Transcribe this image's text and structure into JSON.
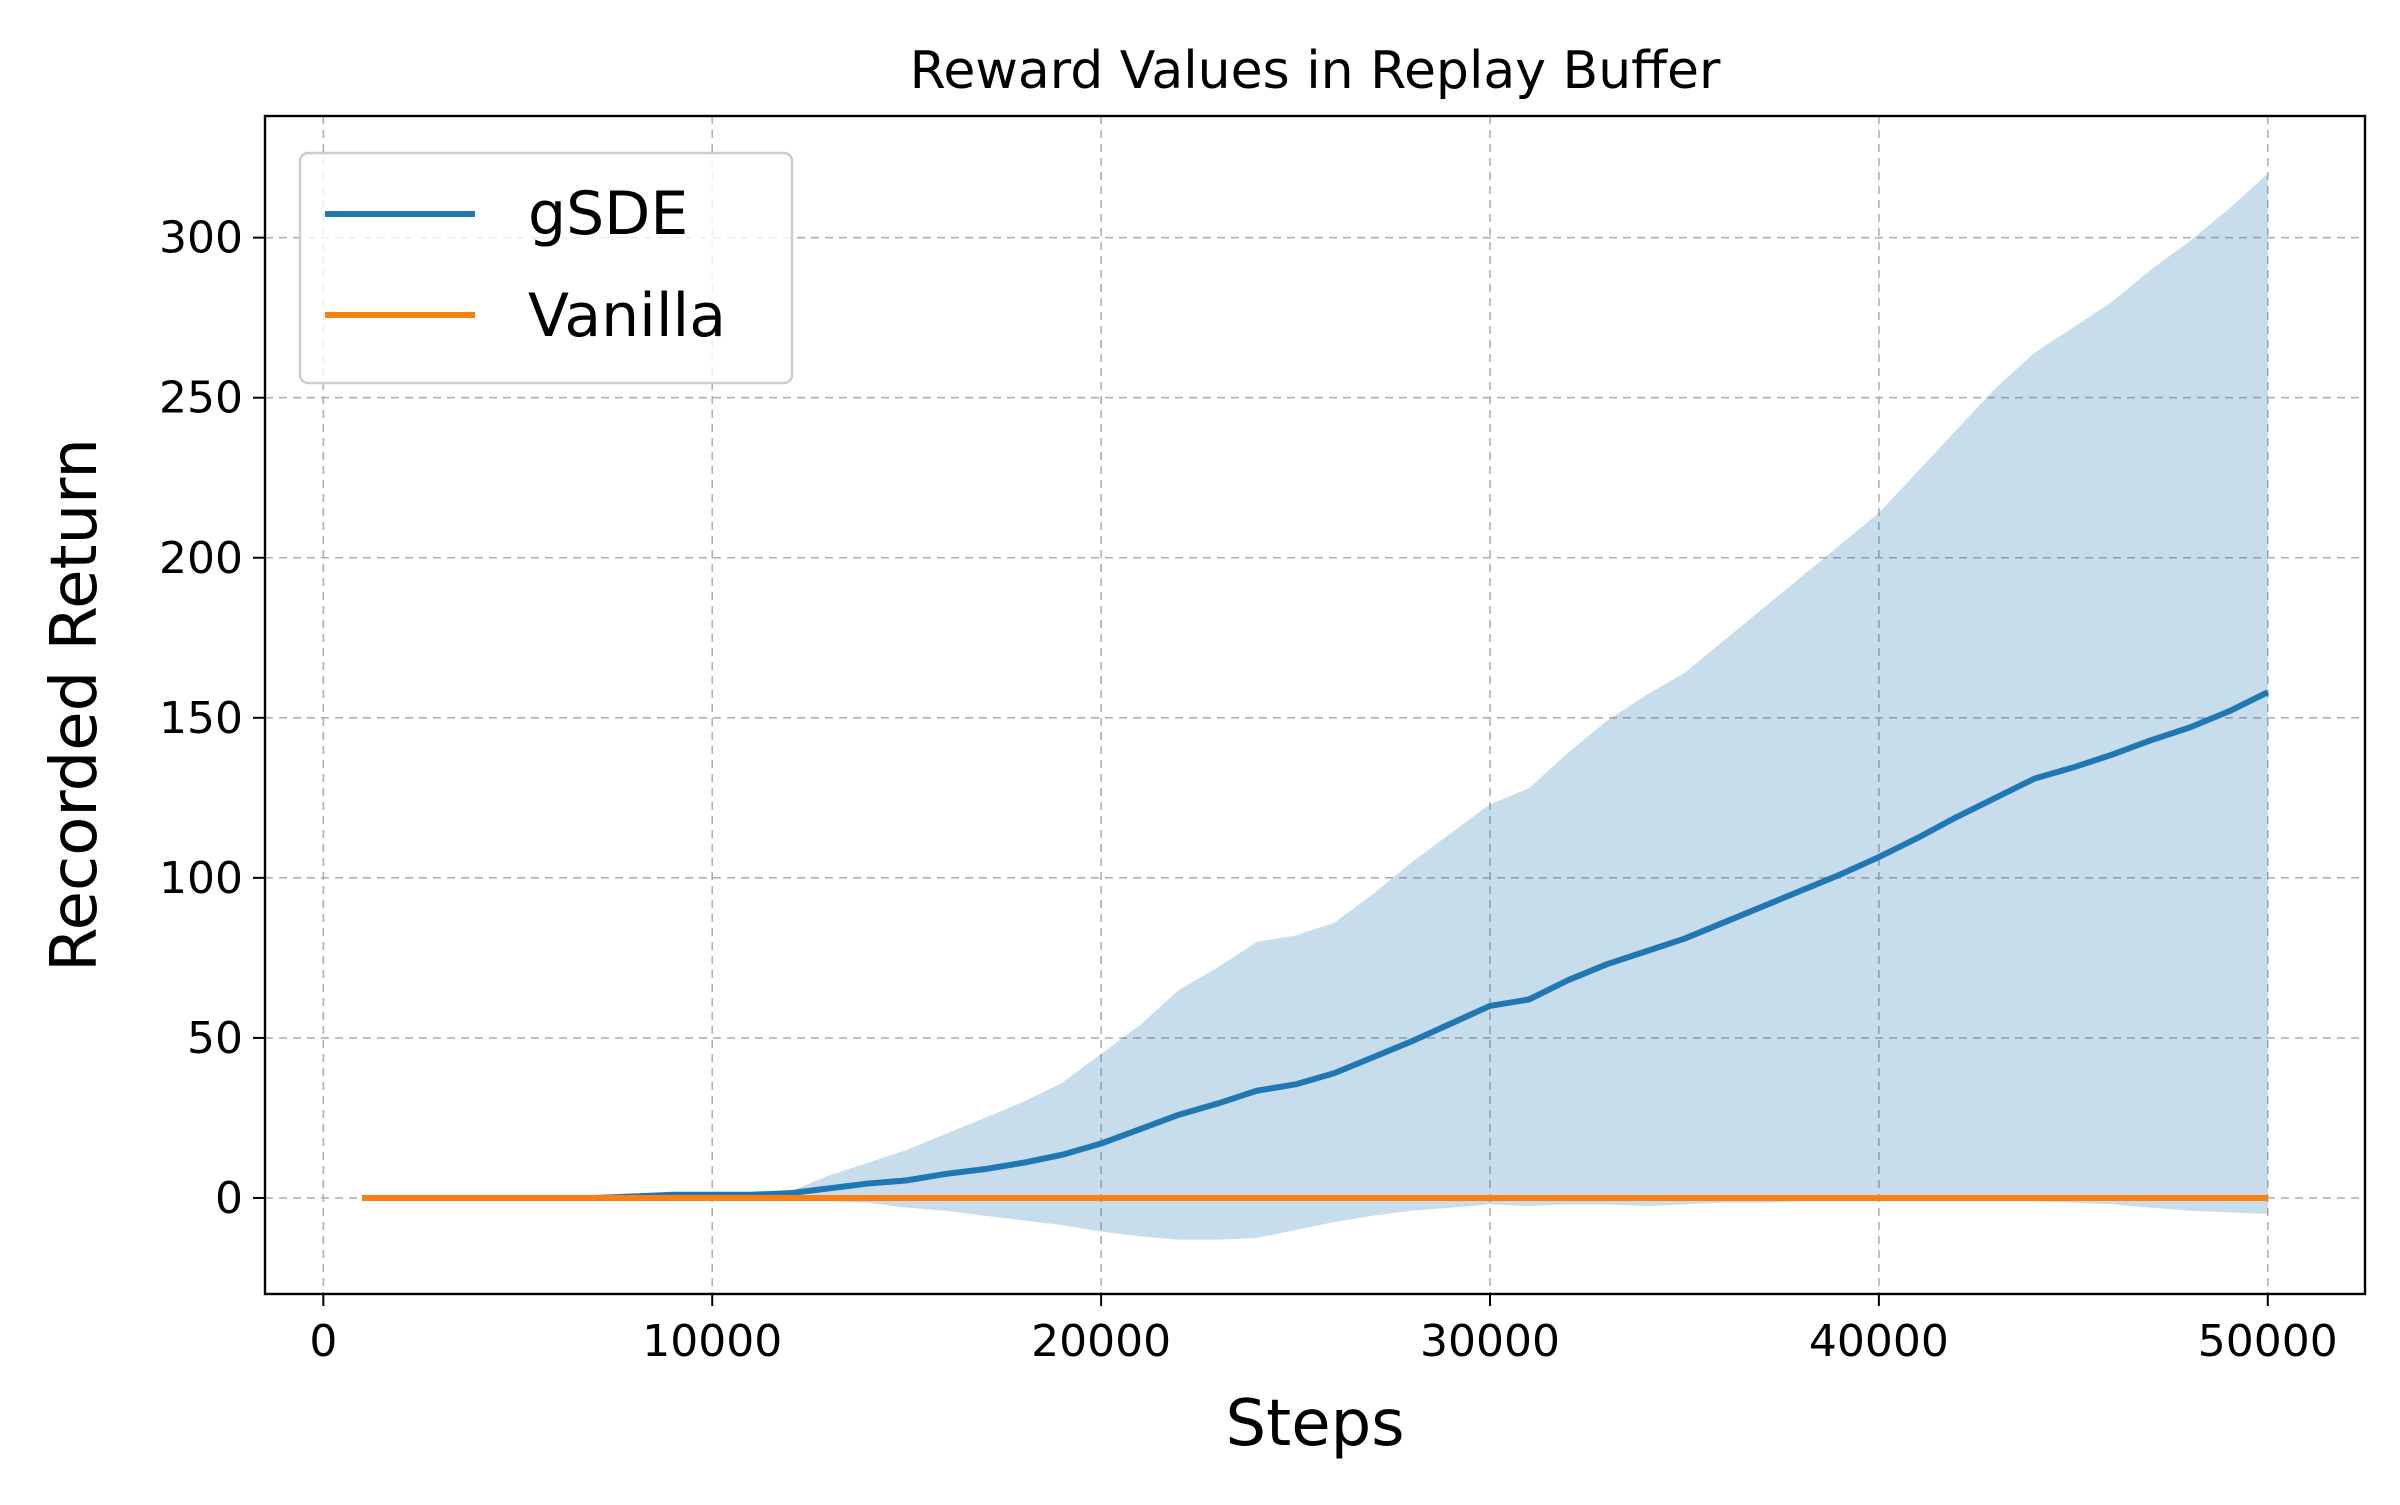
{
  "chart_data": {
    "type": "line",
    "title": "Reward Values in Replay Buffer",
    "xlabel": "Steps",
    "ylabel": "Recorded Return",
    "xlim": [
      -1500,
      52500
    ],
    "ylim": [
      -30,
      338
    ],
    "xticks": [
      0,
      10000,
      20000,
      30000,
      40000,
      50000
    ],
    "yticks": [
      0,
      50,
      100,
      150,
      200,
      250,
      300
    ],
    "grid": true,
    "legend_position": "top-left",
    "x": [
      1000,
      2000,
      3000,
      4000,
      5000,
      6000,
      7000,
      8000,
      9000,
      10000,
      11000,
      12000,
      13000,
      14000,
      15000,
      16000,
      17000,
      18000,
      19000,
      20000,
      21000,
      22000,
      23000,
      24000,
      25000,
      26000,
      27000,
      28000,
      29000,
      30000,
      31000,
      32000,
      33000,
      34000,
      35000,
      36000,
      37000,
      38000,
      39000,
      40000,
      41000,
      42000,
      43000,
      44000,
      45000,
      46000,
      47000,
      48000,
      49000,
      50000
    ],
    "series": [
      {
        "name": "gSDE",
        "color": "#1f77b4",
        "values": [
          0,
          0,
          0,
          0,
          0,
          0,
          0,
          0.5,
          1,
          1,
          1,
          1.5,
          3,
          4.5,
          5.5,
          7.5,
          9,
          11,
          13.5,
          17,
          21.5,
          26,
          29.5,
          33.5,
          35.5,
          39,
          44,
          49,
          54.5,
          60,
          62,
          68,
          73,
          77,
          81,
          86,
          91,
          96,
          101,
          106.5,
          112.5,
          119,
          125,
          131,
          134.5,
          138.5,
          143,
          147,
          152,
          158
        ],
        "band_upper": [
          0,
          0,
          0,
          0,
          0,
          0,
          0,
          0.5,
          1,
          1,
          1,
          2,
          7,
          11,
          15,
          20,
          25,
          30,
          36,
          45,
          54,
          65,
          72,
          80,
          82,
          86,
          95,
          105,
          114,
          123,
          128,
          139,
          149,
          157,
          164,
          174,
          184,
          194,
          204,
          214,
          227,
          240,
          253,
          264,
          272,
          280,
          290,
          299,
          309,
          320
        ],
        "band_lower": [
          0,
          0,
          0,
          0,
          0,
          0,
          0,
          0,
          0,
          0,
          0,
          -0.5,
          -1,
          -1.5,
          -3,
          -4,
          -5.5,
          -7,
          -8.5,
          -10.5,
          -12,
          -13,
          -13,
          -12.5,
          -10,
          -7.5,
          -5.5,
          -4,
          -3,
          -2,
          -2.5,
          -2,
          -2,
          -2.5,
          -2,
          -1.5,
          -1.5,
          -1,
          -1,
          -1,
          -1,
          -1,
          -1,
          -1,
          -1.5,
          -2,
          -3,
          -4,
          -4.5,
          -5
        ]
      },
      {
        "name": "Vanilla",
        "color": "#ff7f0e",
        "values": [
          0,
          0,
          0,
          0,
          0,
          0,
          0,
          0,
          0,
          0,
          0,
          0,
          0,
          0,
          0,
          0,
          0,
          0,
          0,
          0,
          0,
          0,
          0,
          0,
          0,
          0,
          0,
          0,
          0,
          0,
          0,
          0,
          0,
          0,
          0,
          0,
          0,
          0,
          0,
          0,
          0,
          0,
          0,
          0,
          0,
          0,
          0,
          0,
          0,
          0
        ]
      }
    ],
    "band_color": "#1f77b4"
  }
}
